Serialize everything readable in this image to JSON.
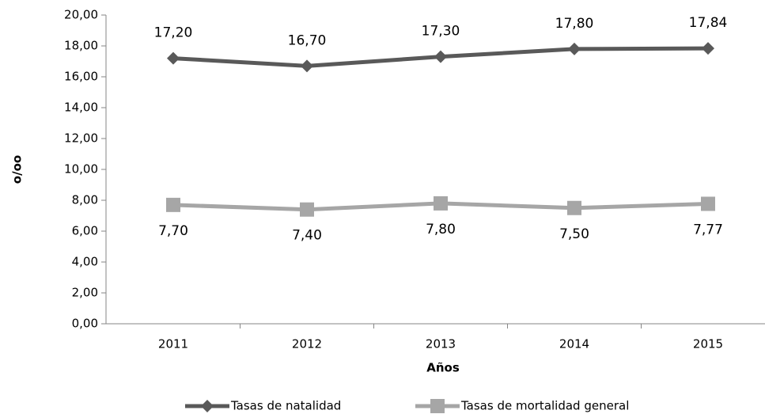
{
  "chart_data": {
    "type": "line",
    "x_label": "Años",
    "y_label": "o/oo",
    "categories": [
      "2011",
      "2012",
      "2013",
      "2014",
      "2015"
    ],
    "series": [
      {
        "name": "Tasas de natalidad",
        "color": "#595959",
        "marker": "diamond",
        "values": [
          17.2,
          16.7,
          17.3,
          17.8,
          17.84
        ],
        "value_labels": [
          "17,20",
          "16,70",
          "17,30",
          "17,80",
          "17,84"
        ]
      },
      {
        "name": "Tasas de mortalidad general",
        "color": "#a6a6a6",
        "marker": "square",
        "values": [
          7.7,
          7.4,
          7.8,
          7.5,
          7.77
        ],
        "value_labels": [
          "7,70",
          "7,40",
          "7,80",
          "7,50",
          "7,77"
        ]
      }
    ],
    "ylim": [
      0,
      20
    ],
    "yticks": [
      {
        "value": 0,
        "label": "0,00"
      },
      {
        "value": 2,
        "label": "2,00"
      },
      {
        "value": 4,
        "label": "4,00"
      },
      {
        "value": 6,
        "label": "6,00"
      },
      {
        "value": 8,
        "label": "8,00"
      },
      {
        "value": 10,
        "label": "10,00"
      },
      {
        "value": 12,
        "label": "12,00"
      },
      {
        "value": 14,
        "label": "14,00"
      },
      {
        "value": 16,
        "label": "16,00"
      },
      {
        "value": 18,
        "label": "18,00"
      },
      {
        "value": 20,
        "label": "20,00"
      }
    ],
    "grid": false,
    "legend": "bottom"
  }
}
